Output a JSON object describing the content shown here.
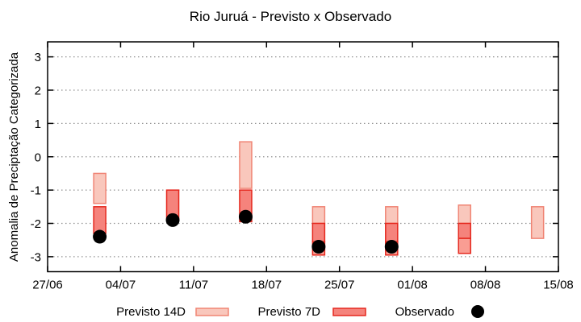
{
  "page": {
    "background": "#ffffff"
  },
  "chart_data": {
    "type": "bar",
    "subtype": "forecast-interval-boxes-with-observed-scatter",
    "title": "Rio Juruá - Previsto x Observado",
    "xlabel": "",
    "ylabel": "Anomalia de Preciptação Categorizada",
    "legend_position": "bottom-center",
    "grid": "horizontal-dotted",
    "x_axis": {
      "tick_labels": [
        "27/06",
        "04/07",
        "11/07",
        "18/07",
        "25/07",
        "01/08",
        "08/08",
        "15/08"
      ],
      "tick_days": [
        0,
        7,
        14,
        21,
        28,
        35,
        42,
        49
      ],
      "span_days": 49
    },
    "y_axis": {
      "tick_values": [
        -3,
        -2,
        -1,
        0,
        1,
        2,
        3
      ],
      "min": -3.45,
      "max": 3.45
    },
    "series": {
      "previsto14": {
        "legend": "Previsto 14D",
        "fill": "#f9c7bc",
        "stroke": "#f08575",
        "boxes": [
          {
            "date": "02/07",
            "day": 5,
            "hi": -0.5,
            "lo": -1.4
          },
          {
            "date": "16/07",
            "day": 19,
            "hi": 0.45,
            "lo": -0.95
          },
          {
            "date": "23/07",
            "day": 26,
            "hi": -1.5,
            "lo": -2.0
          },
          {
            "date": "30/07",
            "day": 33,
            "hi": -1.5,
            "lo": -2.0
          },
          {
            "date": "06/08",
            "day": 40,
            "hi": -1.45,
            "lo": -2.0
          },
          {
            "date": "13/08",
            "day": 47,
            "hi": -1.5,
            "lo": -2.45
          }
        ]
      },
      "previsto7": {
        "legend": "Previsto 7D",
        "fill": "#f5837c",
        "fill_light": "#f99d93",
        "stroke": "#e5281e",
        "boxes": [
          {
            "date": "02/07",
            "day": 5,
            "hi": -1.5,
            "lo": -2.3
          },
          {
            "date": "09/07",
            "day": 12,
            "hi": -1.0,
            "lo": -1.9
          },
          {
            "date": "16/07",
            "day": 19,
            "hi": -1.0,
            "lo": -1.95
          },
          {
            "date": "23/07",
            "day": 26,
            "hi": -2.0,
            "lo": -2.55
          },
          {
            "date": "23/07",
            "day": 26,
            "hi": -2.55,
            "lo": -2.95,
            "shade": "light"
          },
          {
            "date": "30/07",
            "day": 33,
            "hi": -2.0,
            "lo": -2.55
          },
          {
            "date": "30/07",
            "day": 33,
            "hi": -2.55,
            "lo": -2.95,
            "shade": "light"
          },
          {
            "date": "06/08",
            "day": 40,
            "hi": -2.0,
            "lo": -2.45
          },
          {
            "date": "06/08",
            "day": 40,
            "hi": -2.45,
            "lo": -2.9,
            "shade": "light"
          }
        ]
      },
      "observado": {
        "legend": "Observado",
        "color": "#000000",
        "points": [
          {
            "date": "02/07",
            "day": 5,
            "value": -2.4
          },
          {
            "date": "09/07",
            "day": 12,
            "value": -1.9
          },
          {
            "date": "16/07",
            "day": 19,
            "value": -1.8
          },
          {
            "date": "23/07",
            "day": 26,
            "value": -2.7
          },
          {
            "date": "30/07",
            "day": 33,
            "value": -2.7
          }
        ]
      }
    },
    "colors": {
      "grid": "#909090",
      "axis": "#000000",
      "text": "#000000",
      "background": "#ffffff"
    }
  }
}
